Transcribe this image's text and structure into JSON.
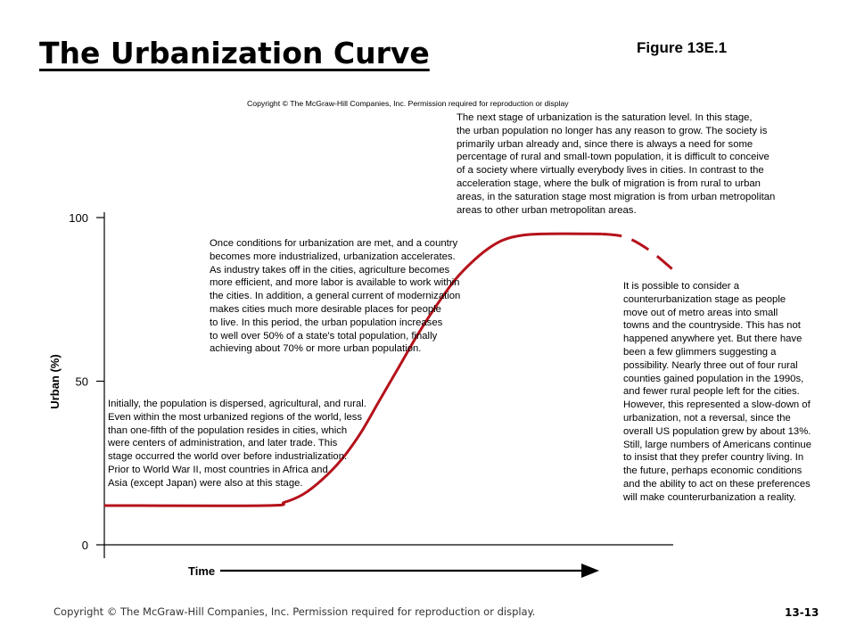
{
  "slide": {
    "title": "The Urbanization Curve",
    "figure_label": "Figure 13E.1",
    "inner_copyright": "Copyright © The McGraw-Hill Companies, Inc. Permission required for reproduction or display",
    "footer_copyright": "Copyright © The McGraw-Hill Companies, Inc. Permission required for reproduction or display.",
    "slide_number": "13-13"
  },
  "annotations": {
    "saturation": [
      "The next stage of urbanization is the saturation level. In this stage,",
      "the urban population no longer has any reason to grow. The society is",
      "primarily urban already and, since there is always a need for some",
      "percentage of rural and small-town population, it is difficult to conceive",
      "of a society where virtually everybody lives in cities. In contrast to the",
      "acceleration stage, where the bulk of migration is from rural to urban",
      "areas, in the saturation stage most migration is from urban metropolitan",
      "areas to other urban metropolitan areas."
    ],
    "acceleration": [
      "Once conditions for urbanization are met, and a country",
      "becomes more industrialized, urbanization accelerates.",
      "As industry takes off in the cities, agriculture becomes",
      "more efficient, and more labor is available to work within",
      "the cities. In addition, a general current of modernization",
      "makes cities much more desirable places for people",
      "to live. In this period, the urban population increases",
      "to well over 50% of a state's total population, finally",
      "achieving about 70% or more urban population."
    ],
    "initial": [
      "Initially, the population is dispersed, agricultural, and rural.",
      "Even within the most urbanized regions of the world, less",
      "than one-fifth of the population resides in cities, which",
      "were centers of administration, and later trade. This",
      "stage occurred the world over before industrialization.",
      "Prior to World War II, most countries in Africa and",
      "Asia (except Japan) were also at this stage."
    ],
    "counterurbanization": [
      "It is possible to consider a",
      "counterurbanization stage as people",
      "move out of metro areas into small",
      "towns and the countryside. This has not",
      "happened anywhere yet. But there have",
      "been a few glimmers suggesting a",
      "possibility. Nearly three out of four rural",
      "counties gained population in the 1990s,",
      "and fewer rural people left for the cities.",
      "However, this represented a slow-down of",
      "urbanization, not a reversal, since the",
      "overall US population grew by about 13%.",
      "Still, large numbers of Americans continue",
      "to insist that they prefer country living. In",
      "the future, perhaps economic conditions",
      "and the ability to act on these preferences",
      "will make counterurbanization a reality."
    ]
  },
  "chart_data": {
    "type": "line",
    "title": "",
    "xlabel": "Time",
    "ylabel": "Urban (%)",
    "ylim": [
      0,
      100
    ],
    "yticks": [
      0,
      50,
      100
    ],
    "ytick_labels": [
      "0",
      "50",
      "100"
    ],
    "xlim": [
      0,
      100
    ],
    "grid": false,
    "line_color": "#b5121b",
    "axis_color": "#000000",
    "series": [
      {
        "style": "solid",
        "x": [
          0,
          34,
          38,
          42,
          46,
          50,
          54,
          58,
          62,
          66,
          70,
          74,
          78,
          82,
          86,
          92,
          105
        ],
        "y": [
          12,
          12,
          13,
          15.5,
          20,
          26,
          34,
          44,
          54,
          64,
          73,
          81,
          87,
          91.5,
          94,
          95,
          95
        ]
      },
      {
        "style": "dashed",
        "x": [
          105,
          110,
          115,
          120
        ],
        "y": [
          95,
          94,
          90,
          84
        ]
      }
    ]
  }
}
